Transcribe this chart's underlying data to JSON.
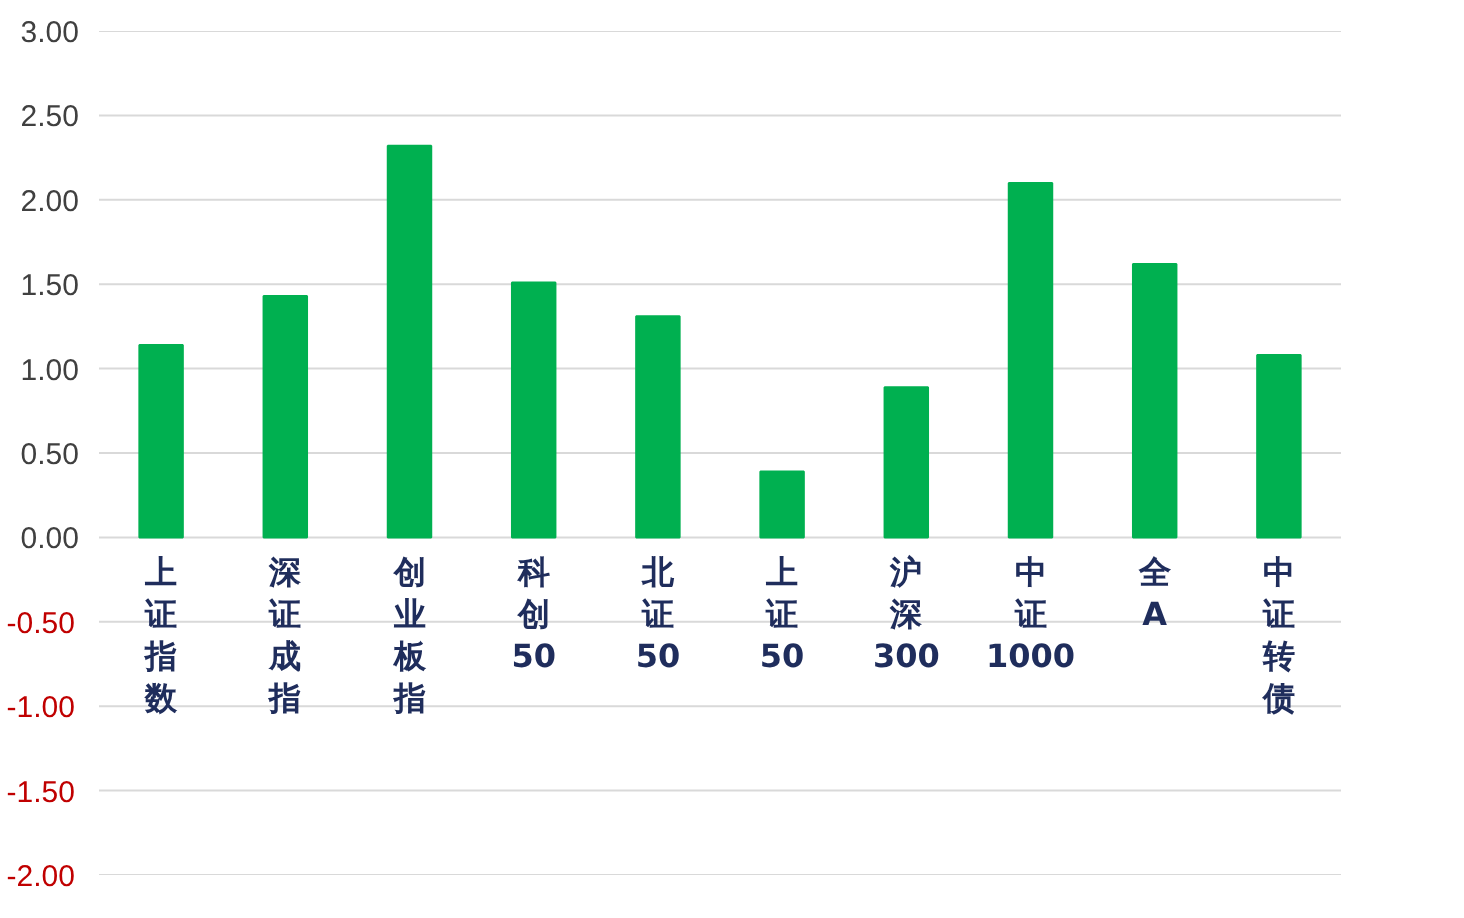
{
  "chart_data": {
    "type": "bar",
    "categories": [
      "上证指数",
      "深证成指",
      "创业板指",
      "科创50",
      "北证50",
      "上证50",
      "沪深300",
      "中证1000",
      "全A",
      "中证转债"
    ],
    "values": [
      1.14,
      1.43,
      2.32,
      1.51,
      1.31,
      0.39,
      0.89,
      2.1,
      1.62,
      1.08
    ],
    "color": "#00b050",
    "ylim": [
      -2,
      3
    ],
    "yticks": [
      {
        "value": -2,
        "label": "-2.00"
      },
      {
        "value": -1.5,
        "label": "-1.50"
      },
      {
        "value": -1,
        "label": "-1.00"
      },
      {
        "value": -0.5,
        "label": "-0.50"
      },
      {
        "value": 0,
        "label": "0.00"
      },
      {
        "value": 0.5,
        "label": "0.50"
      },
      {
        "value": 1,
        "label": "1.00"
      },
      {
        "value": 1.5,
        "label": "1.50"
      },
      {
        "value": 2,
        "label": "2.00"
      },
      {
        "value": 2.5,
        "label": "2.50"
      },
      {
        "value": 3,
        "label": "3.00"
      }
    ],
    "grid": "y"
  }
}
